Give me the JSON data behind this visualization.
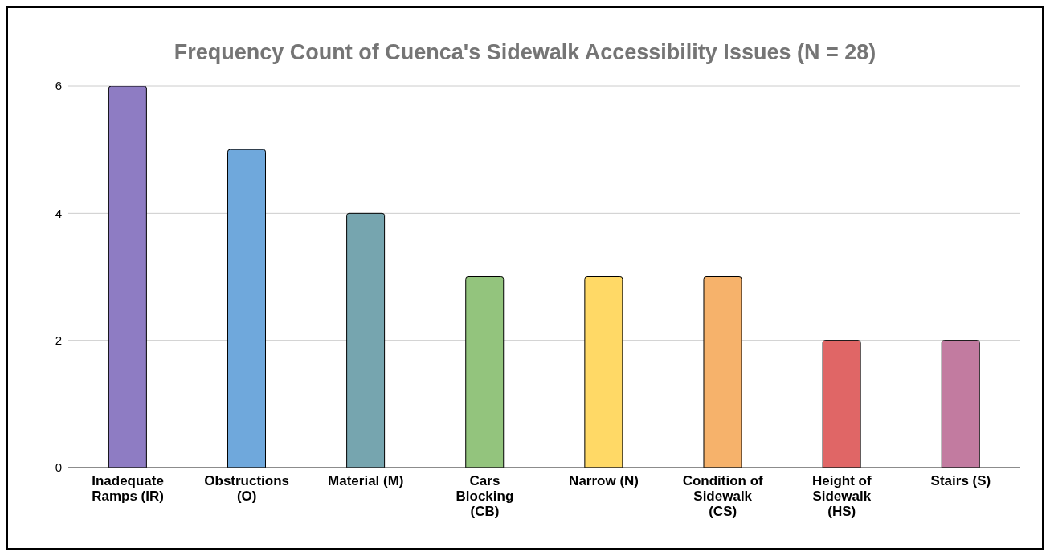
{
  "chart_data": {
    "type": "bar",
    "title": "Frequency Count of Cuenca's Sidewalk Accessibility Issues (N = 28)",
    "categories": [
      "Inadequate Ramps (IR)",
      "Obstructions (O)",
      "Material (M)",
      "Cars Blocking (CB)",
      "Narrow (N)",
      "Condition of Sidewalk (CS)",
      "Height of Sidewalk (HS)",
      "Stairs (S)"
    ],
    "values": [
      6,
      5,
      4,
      3,
      3,
      3,
      2,
      2
    ],
    "colors": [
      "#8e7cc3",
      "#6fa8dc",
      "#76a5af",
      "#93c47d",
      "#ffd966",
      "#f6b26b",
      "#e06666",
      "#c27ba0"
    ],
    "ylim": [
      0,
      6
    ],
    "yticks": [
      0,
      2,
      4,
      6
    ],
    "grid": "y"
  }
}
